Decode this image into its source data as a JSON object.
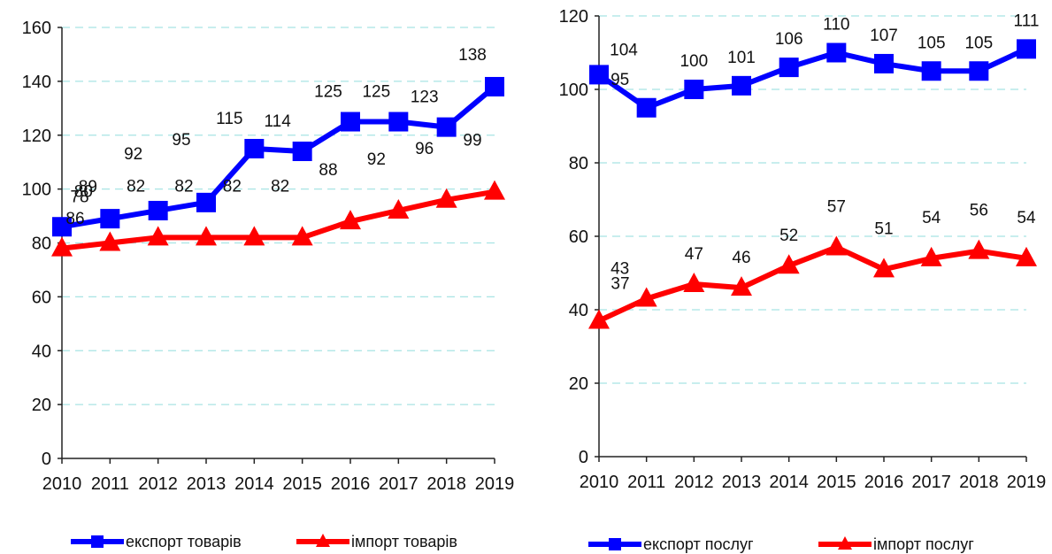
{
  "chart_data": [
    {
      "type": "line",
      "title": "",
      "xlabel": "",
      "ylabel": "",
      "categories": [
        "2010",
        "2011",
        "2012",
        "2013",
        "2014",
        "2015",
        "2016",
        "2017",
        "2018",
        "2019"
      ],
      "ylim": [
        0,
        160
      ],
      "yticks": [
        0,
        20,
        40,
        60,
        80,
        100,
        120,
        140,
        160
      ],
      "grid": true,
      "legend_position": "bottom",
      "series": [
        {
          "name": "експорт товарів",
          "color": "#0000ff",
          "marker": "square",
          "values": [
            86,
            89,
            92,
            95,
            115,
            114,
            125,
            125,
            123,
            138
          ]
        },
        {
          "name": "імпорт товарів",
          "color": "#ff0000",
          "marker": "triangle",
          "values": [
            78,
            80,
            82,
            82,
            82,
            82,
            88,
            92,
            96,
            99
          ]
        }
      ]
    },
    {
      "type": "line",
      "title": "",
      "xlabel": "",
      "ylabel": "",
      "categories": [
        "2010",
        "2011",
        "2012",
        "2013",
        "2014",
        "2015",
        "2016",
        "2017",
        "2018",
        "2019"
      ],
      "ylim": [
        0,
        120
      ],
      "yticks": [
        0,
        20,
        40,
        60,
        80,
        100,
        120
      ],
      "grid": true,
      "legend_position": "bottom",
      "series": [
        {
          "name": "експорт послуг",
          "color": "#0000ff",
          "marker": "square",
          "values": [
            104,
            95,
            100,
            101,
            106,
            110,
            107,
            105,
            105,
            111
          ]
        },
        {
          "name": "імпорт послуг",
          "color": "#ff0000",
          "marker": "triangle",
          "values": [
            37,
            43,
            47,
            46,
            52,
            57,
            51,
            54,
            56,
            54
          ]
        }
      ]
    }
  ]
}
